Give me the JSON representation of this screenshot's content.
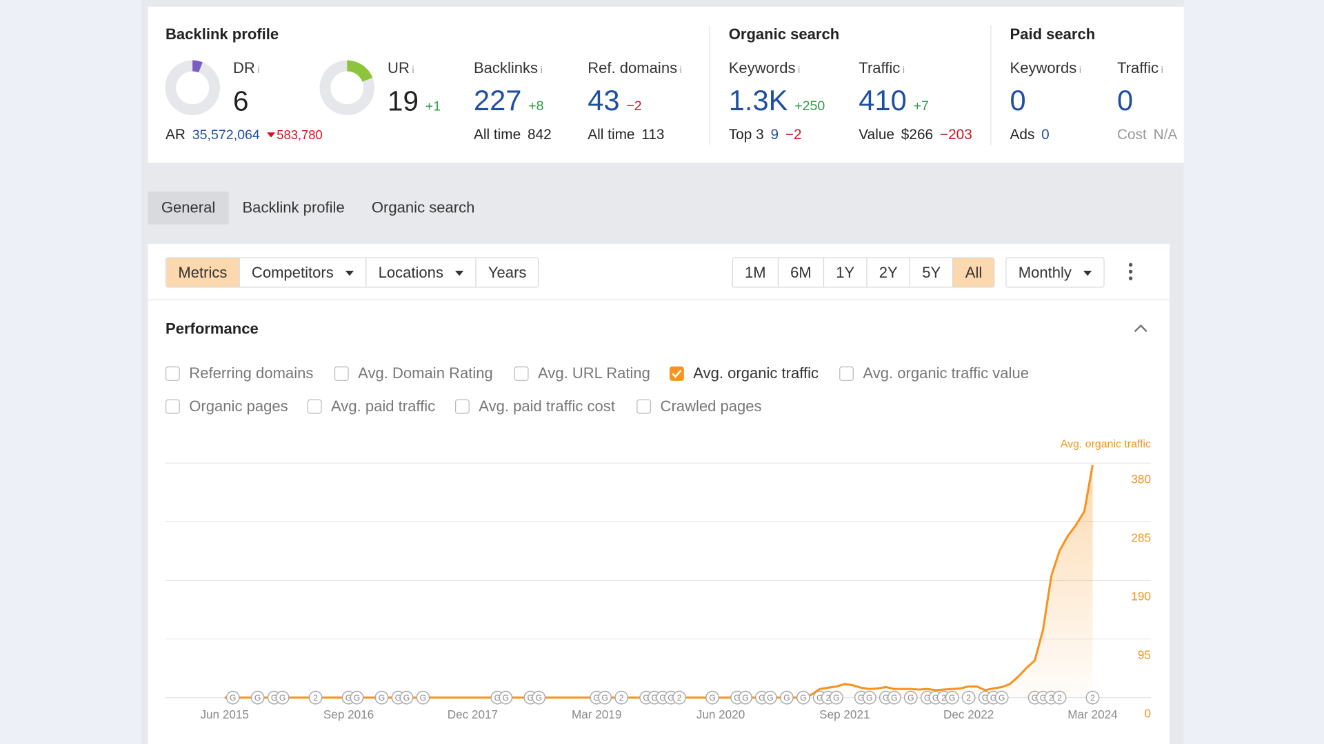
{
  "info_icon": "i",
  "overview": {
    "backlink_profile": {
      "title": "Backlink profile",
      "dr": {
        "label": "DR",
        "value": 6
      },
      "ur": {
        "label": "UR",
        "value": 19,
        "change": "+1"
      },
      "ar": {
        "label": "AR",
        "value": "35,572,064",
        "change": "583,780"
      },
      "backlinks": {
        "label": "Backlinks",
        "value": 227,
        "change": "+8",
        "sub": {
          "label": "All time",
          "value": 842
        }
      },
      "ref_domains": {
        "label": "Ref. domains",
        "value": 43,
        "change": "−2",
        "sub": {
          "label": "All time",
          "value": 113
        }
      }
    },
    "organic_search": {
      "title": "Organic search",
      "keywords": {
        "label": "Keywords",
        "value": "1.3K",
        "change": "+250",
        "sub": {
          "label": "Top 3",
          "value": 9,
          "change": "−2"
        }
      },
      "traffic": {
        "label": "Traffic",
        "value": 410,
        "change": "+7",
        "sub": {
          "label": "Value",
          "value": "$266",
          "change": "−203"
        }
      }
    },
    "paid_search": {
      "title": "Paid search",
      "keywords": {
        "label": "Keywords",
        "value": 0,
        "sub": {
          "label": "Ads",
          "value": 0
        }
      },
      "traffic": {
        "label": "Traffic",
        "value": 0,
        "sub": {
          "label": "Cost",
          "value": "N/A"
        }
      }
    }
  },
  "tabs": {
    "items": [
      "General",
      "Backlink profile",
      "Organic search"
    ],
    "active": 0
  },
  "toolbar": {
    "filters": {
      "items": [
        {
          "label": "Metrics",
          "dropdown": false
        },
        {
          "label": "Competitors",
          "dropdown": true
        },
        {
          "label": "Locations",
          "dropdown": true
        },
        {
          "label": "Years",
          "dropdown": false
        }
      ],
      "active": 0
    },
    "ranges": {
      "items": [
        "1M",
        "6M",
        "1Y",
        "2Y",
        "5Y",
        "All"
      ],
      "active": 5
    },
    "interval": "Monthly"
  },
  "performance": {
    "title": "Performance",
    "checkboxes": [
      {
        "label": "Referring domains",
        "checked": false
      },
      {
        "label": "Avg. Domain Rating",
        "checked": false
      },
      {
        "label": "Avg. URL Rating",
        "checked": false
      },
      {
        "label": "Avg. organic traffic",
        "checked": true
      },
      {
        "label": "Avg. organic traffic value",
        "checked": false
      },
      {
        "label": "Organic pages",
        "checked": false
      },
      {
        "label": "Avg. paid traffic",
        "checked": false
      },
      {
        "label": "Avg. paid traffic cost",
        "checked": false
      },
      {
        "label": "Crawled pages",
        "checked": false
      }
    ]
  },
  "chart_data": {
    "type": "line",
    "legend": "top-right",
    "y_axis_side": "right",
    "grid": true,
    "categories": [
      "Jun 2015",
      null,
      null,
      null,
      null,
      null,
      null,
      null,
      null,
      null,
      null,
      null,
      null,
      null,
      null,
      "Sep 2016",
      null,
      null,
      null,
      null,
      null,
      null,
      null,
      null,
      null,
      null,
      null,
      null,
      null,
      null,
      "Dec 2017",
      null,
      null,
      null,
      null,
      null,
      null,
      null,
      null,
      null,
      null,
      null,
      null,
      null,
      null,
      "Mar 2019",
      null,
      null,
      null,
      null,
      null,
      null,
      null,
      null,
      null,
      null,
      null,
      null,
      null,
      null,
      "Jun 2020",
      null,
      null,
      null,
      null,
      null,
      null,
      null,
      null,
      null,
      null,
      null,
      null,
      null,
      null,
      "Sep 2021",
      null,
      null,
      null,
      null,
      null,
      null,
      null,
      null,
      null,
      null,
      null,
      null,
      null,
      null,
      "Dec 2022",
      null,
      null,
      null,
      null,
      null,
      null,
      null,
      null,
      null,
      null,
      null,
      null,
      null,
      null,
      "Mar 2024"
    ],
    "series": [
      {
        "name": "Avg. organic traffic",
        "color": "#f7931e",
        "values": [
          0,
          0,
          0,
          0,
          0,
          0,
          0,
          0,
          0,
          0,
          0,
          0,
          0,
          0,
          0,
          0,
          0,
          0,
          0,
          0,
          0,
          0,
          0,
          0,
          0,
          0,
          0,
          0,
          0,
          0,
          0,
          0,
          0,
          0,
          0,
          0,
          0,
          0,
          0,
          0,
          0,
          0,
          0,
          0,
          0,
          0,
          0,
          0,
          0,
          0,
          0,
          0,
          0,
          0,
          0,
          0,
          0,
          0,
          0,
          0,
          0,
          0,
          0,
          0,
          0,
          0,
          0,
          0,
          0,
          0,
          0,
          5,
          14,
          16,
          18,
          22,
          20,
          16,
          14,
          15,
          17,
          14,
          14,
          14,
          13,
          14,
          12,
          13,
          14,
          15,
          18,
          18,
          12,
          15,
          17,
          22,
          34,
          48,
          60,
          110,
          197,
          238,
          262,
          280,
          302,
          377
        ]
      }
    ],
    "ylim": [
      0,
      380
    ],
    "yticks": [
      0,
      95,
      190,
      285,
      380
    ],
    "events": [
      {
        "i": 1,
        "label": "G"
      },
      {
        "i": 4,
        "label": "G"
      },
      {
        "i": 6,
        "label": "G"
      },
      {
        "i": 7,
        "label": "G"
      },
      {
        "i": 11,
        "label": "2"
      },
      {
        "i": 15,
        "label": "G"
      },
      {
        "i": 16,
        "label": "G"
      },
      {
        "i": 19,
        "label": "G"
      },
      {
        "i": 21,
        "label": "G"
      },
      {
        "i": 22,
        "label": "G"
      },
      {
        "i": 24,
        "label": "G"
      },
      {
        "i": 33,
        "label": "G"
      },
      {
        "i": 34,
        "label": "G"
      },
      {
        "i": 37,
        "label": "G"
      },
      {
        "i": 38,
        "label": "G"
      },
      {
        "i": 45,
        "label": "G"
      },
      {
        "i": 46,
        "label": "G"
      },
      {
        "i": 48,
        "label": "2"
      },
      {
        "i": 51,
        "label": "G"
      },
      {
        "i": 52,
        "label": "G"
      },
      {
        "i": 53,
        "label": "G"
      },
      {
        "i": 54,
        "label": "G"
      },
      {
        "i": 55,
        "label": "2"
      },
      {
        "i": 59,
        "label": "G"
      },
      {
        "i": 62,
        "label": "G"
      },
      {
        "i": 63,
        "label": "G"
      },
      {
        "i": 65,
        "label": "G"
      },
      {
        "i": 66,
        "label": "G"
      },
      {
        "i": 68,
        "label": "G"
      },
      {
        "i": 70,
        "label": "G"
      },
      {
        "i": 72,
        "label": "G"
      },
      {
        "i": 73,
        "label": "2"
      },
      {
        "i": 74,
        "label": "G"
      },
      {
        "i": 77,
        "label": "G"
      },
      {
        "i": 78,
        "label": "G"
      },
      {
        "i": 80,
        "label": "G"
      },
      {
        "i": 81,
        "label": "G"
      },
      {
        "i": 83,
        "label": "G"
      },
      {
        "i": 85,
        "label": "G"
      },
      {
        "i": 86,
        "label": "G"
      },
      {
        "i": 87,
        "label": "2"
      },
      {
        "i": 88,
        "label": "G"
      },
      {
        "i": 90,
        "label": "2"
      },
      {
        "i": 92,
        "label": "G"
      },
      {
        "i": 93,
        "label": "G"
      },
      {
        "i": 94,
        "label": "G"
      },
      {
        "i": 98,
        "label": "G"
      },
      {
        "i": 99,
        "label": "G"
      },
      {
        "i": 100,
        "label": "2"
      },
      {
        "i": 101,
        "label": "2"
      },
      {
        "i": 105,
        "label": "2"
      }
    ]
  }
}
